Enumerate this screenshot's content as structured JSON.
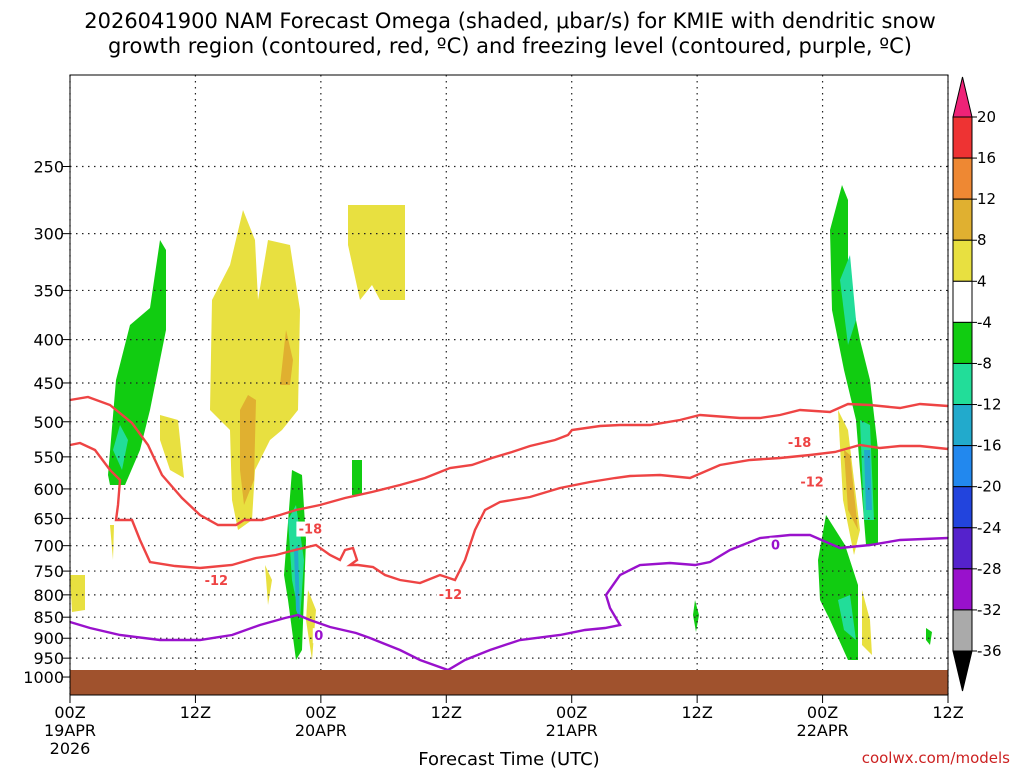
{
  "title_lines": [
    "2026041900 NAM Forecast Omega (shaded, μbar/s) for KMIE with dendritic snow",
    "growth region (contoured, red, ºC) and freezing level (contoured, purple, ºC)"
  ],
  "credit": "coolwx.com/models",
  "credit_color": "#cc2222",
  "chart_data": {
    "type": "heatmap",
    "xlabel": "Forecast Time (UTC)",
    "ylabel": "",
    "x_ticks": [
      {
        "hour": 0,
        "label": "00Z",
        "sub": [
          "19APR",
          "2026"
        ]
      },
      {
        "hour": 12,
        "label": "12Z",
        "sub": []
      },
      {
        "hour": 24,
        "label": "00Z",
        "sub": [
          "20APR"
        ]
      },
      {
        "hour": 36,
        "label": "12Z",
        "sub": []
      },
      {
        "hour": 48,
        "label": "00Z",
        "sub": [
          "21APR"
        ]
      },
      {
        "hour": 60,
        "label": "12Z",
        "sub": []
      },
      {
        "hour": 72,
        "label": "00Z",
        "sub": [
          "22APR"
        ]
      },
      {
        "hour": 84,
        "label": "12Z",
        "sub": []
      }
    ],
    "xlim": [
      0,
      84
    ],
    "y_ticks": [
      250,
      300,
      350,
      400,
      450,
      500,
      550,
      600,
      650,
      700,
      750,
      800,
      850,
      900,
      950,
      1000
    ],
    "ylim": [
      1050,
      195
    ],
    "y_scale": "log",
    "grid": true,
    "colorbar": {
      "labels": [
        "20",
        "16",
        "12",
        "8",
        "4",
        "-4",
        "-8",
        "-12",
        "-16",
        "-20",
        "-24",
        "-28",
        "-32",
        "-36"
      ],
      "colors": [
        "#ee2277",
        "#ee3333",
        "#ee8833",
        "#e0b030",
        "#e8e040",
        "#ffffff",
        "#11cc11",
        "#22dd99",
        "#22aacc",
        "#2288ee",
        "#2244dd",
        "#5522cc",
        "#9911cc",
        "#aaaaaa",
        "#000000"
      ]
    },
    "contour_labels": [
      {
        "text": "-18",
        "hour": 23.0,
        "p": 670,
        "color": "#ee4444"
      },
      {
        "text": "-12",
        "hour": 14.0,
        "p": 770,
        "color": "#ee4444"
      },
      {
        "text": "-12",
        "hour": 36.4,
        "p": 800,
        "color": "#ee4444"
      },
      {
        "text": "-18",
        "hour": 69.8,
        "p": 530,
        "color": "#ee4444"
      },
      {
        "text": "-12",
        "hour": 71.0,
        "p": 590,
        "color": "#ee4444"
      },
      {
        "text": "0",
        "hour": 23.8,
        "p": 895,
        "color": "#9911cc"
      },
      {
        "text": "0",
        "hour": 67.5,
        "p": 700,
        "color": "#9911cc"
      }
    ]
  }
}
